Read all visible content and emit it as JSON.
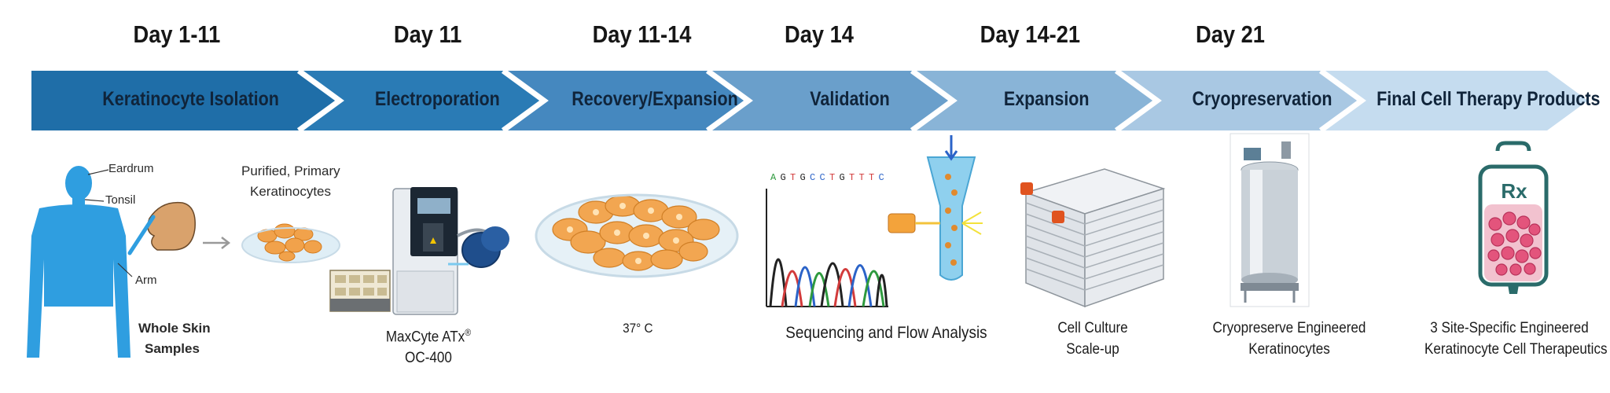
{
  "days": [
    "Day 1-11",
    "Day 11",
    "Day 11-14",
    "Day 14",
    "Day 14-21",
    "Day 21"
  ],
  "stages": [
    "Keratinocyte Isolation",
    "Electroporation",
    "Recovery/Expansion",
    "Validation",
    "Expansion",
    "Cryopreservation",
    "Final Cell Therapy Products"
  ],
  "stage_colors": [
    "#1f6ea8",
    "#2a7bb5",
    "#4588bf",
    "#6a9fcb",
    "#89b4d7",
    "#a9c8e3",
    "#c5dcef"
  ],
  "body_labels": {
    "eardrum": "Eardrum",
    "tonsil": "Tonsil",
    "arm": "Arm",
    "samples_line1": "Whole Skin",
    "samples_line2": "Samples"
  },
  "purified": {
    "line1": "Purified, Primary",
    "line2": "Keratinocytes"
  },
  "maxcyte": {
    "line1": "MaxCyte ATx",
    "reg": "®",
    "line2": "OC-400"
  },
  "temperature": "37° C",
  "dna_sequence": "AGTGCCTGTTTC",
  "sequencing": "Sequencing and Flow Analysis",
  "culture": {
    "line1": "Cell Culture",
    "line2": "Scale-up"
  },
  "cryo": {
    "line1": "Cryopreserve Engineered",
    "line2": "Keratinocytes"
  },
  "bag_label": "Rx",
  "final": {
    "line1": "3 Site-Specific Engineered",
    "line2": "Keratinocyte Cell Therapeutics"
  }
}
